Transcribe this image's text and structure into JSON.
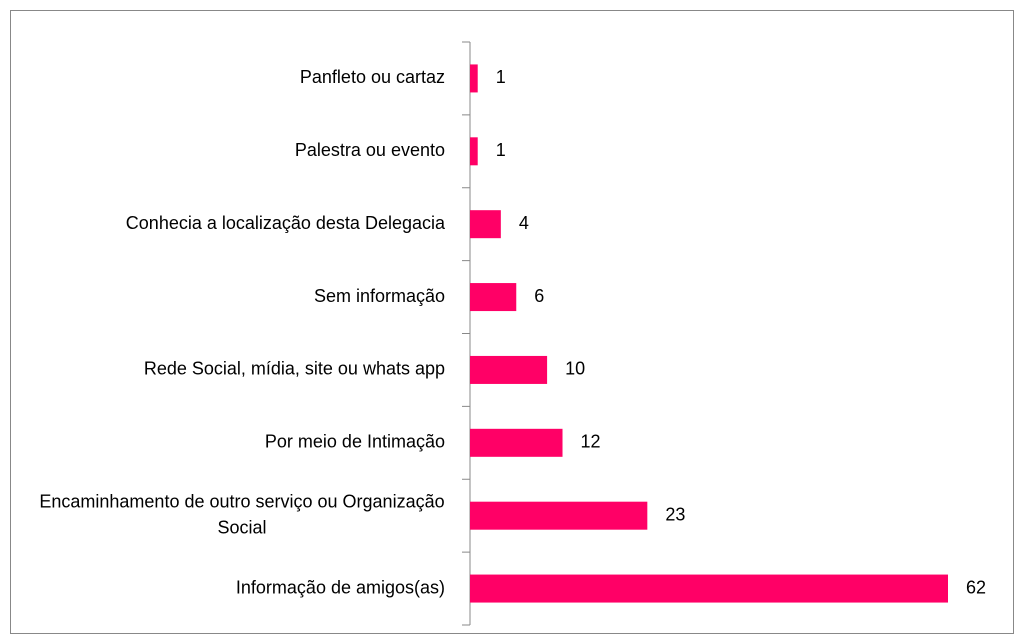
{
  "chart_data": {
    "type": "bar",
    "orientation": "horizontal",
    "categories": [
      "Panfleto ou cartaz",
      "Palestra ou evento",
      "Conhecia a localização desta Delegacia",
      "Sem informação",
      "Rede Social, mídia, site ou whats app",
      "Por meio de Intimação",
      "Encaminhamento de outro serviço ou Organização Social",
      "Informação de amigos(as)"
    ],
    "values": [
      1,
      1,
      4,
      6,
      10,
      12,
      23,
      62
    ],
    "color": "#ff0066"
  }
}
